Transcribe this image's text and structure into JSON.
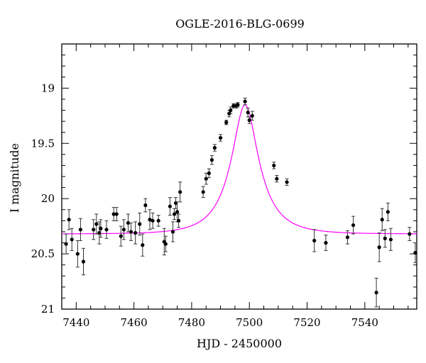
{
  "chart_data": {
    "type": "scatter",
    "title": "OGLE-2016-BLG-0699",
    "xlabel": "HJD - 2450000",
    "ylabel": "I magnitude",
    "xlim": [
      7435,
      7558
    ],
    "ylim": [
      21.0,
      18.6
    ],
    "y_inverted": true,
    "xticks": [
      7440,
      7460,
      7480,
      7500,
      7520,
      7540
    ],
    "yticks": [
      19,
      19.5,
      20,
      20.5,
      21
    ],
    "ytick_labels": [
      "19",
      "19.5",
      "20",
      "20.5",
      "21"
    ],
    "grid": false,
    "colors": {
      "points": "#000000",
      "model": "#ff00ff",
      "axes": "#000000"
    },
    "model": {
      "name": "",
      "type": "microlensing-fit",
      "baseline_mag": 20.32,
      "peak_mag": 19.15,
      "t0": 7498.5,
      "tE": 11.5,
      "u0": 0.41
    },
    "series": [
      {
        "kind": "points-with-errorbars",
        "x": [
          7436.5,
          7437.5,
          7438.5,
          7440.5,
          7441.5,
          7442.5,
          7446.0,
          7447.0,
          7448.0,
          7448.5,
          7450.5,
          7453.0,
          7454.0,
          7455.5,
          7456.5,
          7458.0,
          7459.0,
          7460.5,
          7462.0,
          7463.0,
          7464.0,
          7465.5,
          7466.5,
          7468.5,
          7470.5,
          7471.0,
          7472.5,
          7473.5,
          7474.0,
          7474.5,
          7475.0,
          7475.5,
          7476.0,
          7484.0,
          7485.0,
          7486.0,
          7487.0,
          7488.0,
          7490.0,
          7492.0,
          7493.0,
          7493.5,
          7494.5,
          7495.5,
          7496.0,
          7498.5,
          7499.5,
          7500.0,
          7501.0,
          7508.5,
          7509.5,
          7513.0,
          7522.5,
          7526.5,
          7534.0,
          7536.0,
          7544.0,
          7545.0,
          7546.0,
          7547.0,
          7548.0,
          7549.0,
          7555.5,
          7557.5
        ],
        "y": [
          20.41,
          20.19,
          20.37,
          20.5,
          20.28,
          20.57,
          20.28,
          20.23,
          20.31,
          20.27,
          20.28,
          20.14,
          20.14,
          20.34,
          20.28,
          20.22,
          20.3,
          20.31,
          20.23,
          20.42,
          20.06,
          20.19,
          20.2,
          20.2,
          20.39,
          20.41,
          20.07,
          20.3,
          20.14,
          20.04,
          20.12,
          20.2,
          19.94,
          19.94,
          19.82,
          19.77,
          19.65,
          19.54,
          19.45,
          19.31,
          19.23,
          19.2,
          19.16,
          19.16,
          19.15,
          19.12,
          19.22,
          19.29,
          19.25,
          19.7,
          19.82,
          19.85,
          20.38,
          20.4,
          20.35,
          20.24,
          20.85,
          20.44,
          20.19,
          20.36,
          20.12,
          20.37,
          20.32,
          20.49
        ],
        "err": [
          0.09,
          0.09,
          0.1,
          0.12,
          0.1,
          0.12,
          0.09,
          0.09,
          0.1,
          0.08,
          0.08,
          0.06,
          0.06,
          0.09,
          0.09,
          0.08,
          0.08,
          0.1,
          0.1,
          0.1,
          0.06,
          0.09,
          0.07,
          0.05,
          0.12,
          0.07,
          0.08,
          0.09,
          0.05,
          0.05,
          0.09,
          0.06,
          0.09,
          0.05,
          0.05,
          0.04,
          0.04,
          0.03,
          0.03,
          0.02,
          0.03,
          0.03,
          0.02,
          0.02,
          0.02,
          0.03,
          0.04,
          0.03,
          0.04,
          0.03,
          0.03,
          0.03,
          0.1,
          0.07,
          0.06,
          0.08,
          0.13,
          0.13,
          0.1,
          0.08,
          0.08,
          0.1,
          0.06,
          0.09
        ]
      }
    ]
  }
}
